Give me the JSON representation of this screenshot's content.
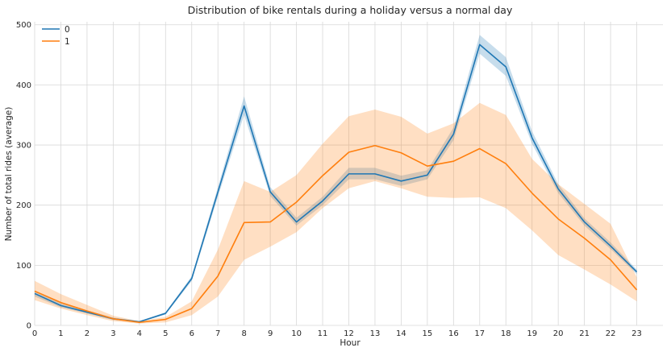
{
  "chart_data": {
    "type": "line",
    "title": "Distribution of bike rentals during a holiday versus a normal day",
    "xlabel": "Hour",
    "ylabel": "Number of total rides (average)",
    "xlim": [
      0,
      24
    ],
    "ylim": [
      0,
      505
    ],
    "x_ticks": [
      0,
      1,
      2,
      3,
      4,
      5,
      6,
      7,
      8,
      9,
      10,
      11,
      12,
      13,
      14,
      15,
      16,
      17,
      18,
      19,
      20,
      21,
      22,
      23
    ],
    "y_ticks": [
      0,
      100,
      200,
      300,
      400,
      500
    ],
    "grid": true,
    "legend_position": "top-left",
    "x": [
      0,
      1,
      2,
      3,
      4,
      5,
      6,
      7,
      8,
      9,
      10,
      11,
      12,
      13,
      14,
      15,
      16,
      17,
      18,
      19,
      20,
      21,
      22,
      23
    ],
    "series": [
      {
        "name": "0",
        "color": "#1f77b4",
        "values": [
          53,
          33,
          22,
          11,
          6,
          20,
          78,
          222,
          365,
          222,
          172,
          207,
          252,
          252,
          240,
          250,
          318,
          467,
          430,
          312,
          227,
          172,
          132,
          89
        ],
        "ci_lower": [
          48,
          30,
          20,
          9,
          5,
          18,
          74,
          214,
          350,
          215,
          166,
          200,
          243,
          243,
          232,
          243,
          308,
          452,
          415,
          302,
          220,
          166,
          127,
          85
        ],
        "ci_upper": [
          58,
          37,
          25,
          13,
          7,
          22,
          82,
          230,
          381,
          230,
          179,
          214,
          262,
          262,
          249,
          258,
          329,
          483,
          446,
          323,
          235,
          178,
          138,
          93
        ]
      },
      {
        "name": "1",
        "color": "#ff7f0e",
        "values": [
          57,
          38,
          24,
          11,
          5,
          10,
          28,
          82,
          171,
          172,
          205,
          249,
          288,
          299,
          287,
          265,
          273,
          294,
          269,
          220,
          177,
          145,
          109,
          59
        ],
        "ci_lower": [
          42,
          28,
          17,
          7,
          3,
          5,
          17,
          48,
          109,
          131,
          155,
          195,
          228,
          240,
          228,
          214,
          212,
          213,
          195,
          158,
          117,
          93,
          68,
          40
        ],
        "ci_upper": [
          74,
          52,
          34,
          16,
          7,
          14,
          40,
          126,
          240,
          222,
          250,
          302,
          348,
          359,
          347,
          319,
          336,
          370,
          350,
          277,
          235,
          202,
          169,
          80
        ]
      }
    ]
  }
}
